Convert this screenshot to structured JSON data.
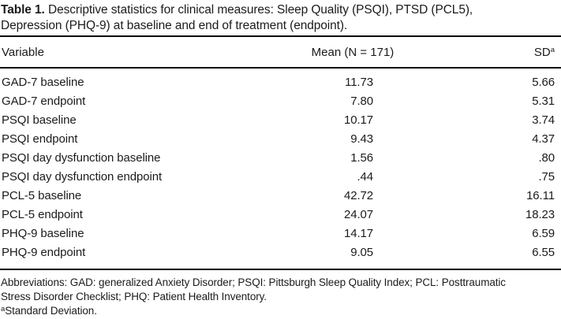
{
  "caption": {
    "label": "Table 1.",
    "text": "Descriptive statistics for clinical measures: Sleep Quality (PSQI), PTSD (PCL5), Depression (PHQ-9) at baseline and end of treatment (endpoint)."
  },
  "columns": {
    "variable": "Variable",
    "mean": "Mean (N = 171)",
    "sd": "SD",
    "sd_sup": "a"
  },
  "rows": [
    {
      "variable": "GAD-7 baseline",
      "mean": "11.73",
      "sd": "5.66"
    },
    {
      "variable": "GAD-7 endpoint",
      "mean": "7.80",
      "sd": "5.31"
    },
    {
      "variable": "PSQI baseline",
      "mean": "10.17",
      "sd": "3.74"
    },
    {
      "variable": "PSQI endpoint",
      "mean": "9.43",
      "sd": "4.37"
    },
    {
      "variable": "PSQI day dysfunction baseline",
      "mean": "1.56",
      "sd": ".80"
    },
    {
      "variable": "PSQI day dysfunction endpoint",
      "mean": ".44",
      "sd": ".75"
    },
    {
      "variable": "PCL-5 baseline",
      "mean": "42.72",
      "sd": "16.11"
    },
    {
      "variable": "PCL-5 endpoint",
      "mean": "24.07",
      "sd": "18.23"
    },
    {
      "variable": "PHQ-9 baseline",
      "mean": "14.17",
      "sd": "6.59"
    },
    {
      "variable": "PHQ-9 endpoint",
      "mean": "9.05",
      "sd": "6.55"
    }
  ],
  "footnotes": {
    "abbreviations_line1": "Abbreviations: GAD: generalized Anxiety Disorder; PSQI: Pittsburgh Sleep Quality Index; PCL: Posttraumatic",
    "abbreviations_line2": "Stress Disorder Checklist; PHQ: Patient Health Inventory.",
    "sd_sup": "a",
    "sd_note": "Standard Deviation."
  },
  "colors": {
    "text": "#1b1b1b",
    "rule": "#000000",
    "background": "#ffffff"
  }
}
